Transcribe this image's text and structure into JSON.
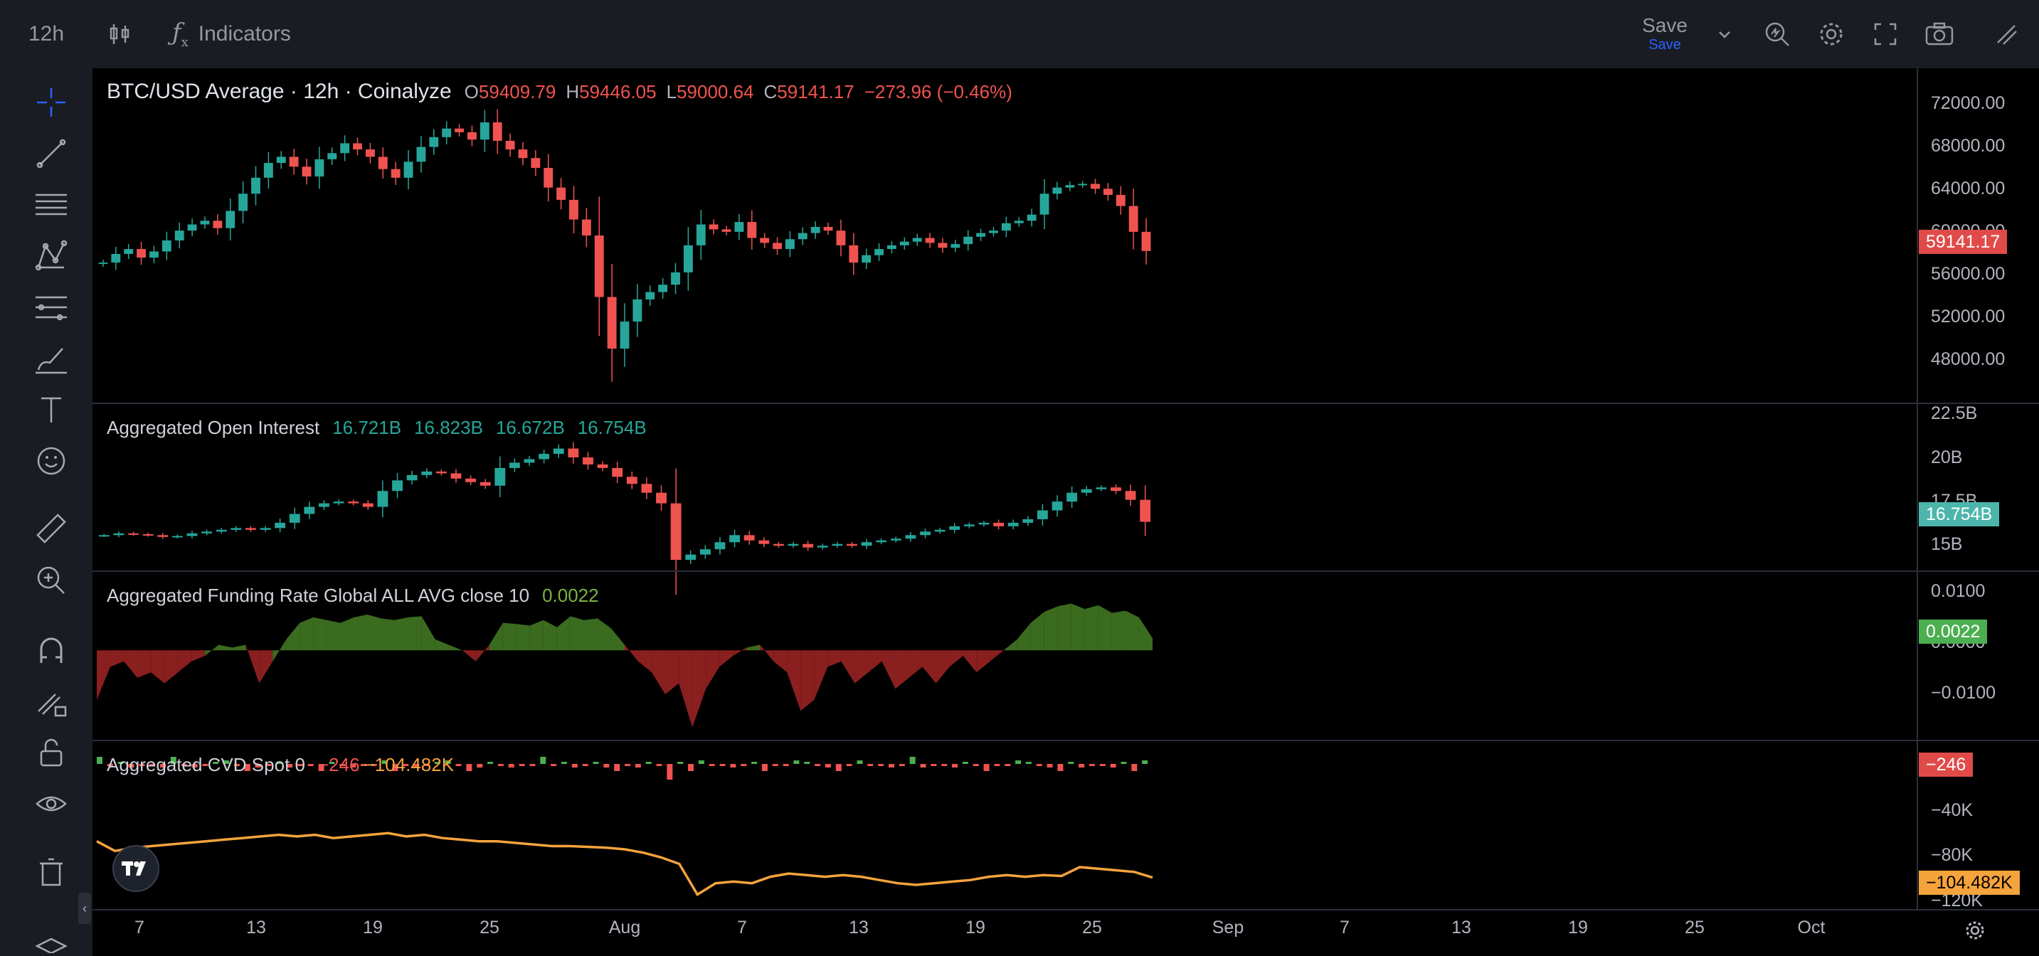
{
  "toolbar": {
    "interval": "12h",
    "indicators_label": "Indicators",
    "save_label": "Save",
    "save_sub_label": "Save"
  },
  "main_pane": {
    "title": "BTC/USD Average · 12h · Coinalyze",
    "o_key": "O",
    "o_val": "59409.79",
    "h_key": "H",
    "h_val": "59446.05",
    "l_key": "L",
    "l_val": "59000.64",
    "c_key": "C",
    "c_val": "59141.17",
    "change": "−273.96 (−0.46%)",
    "y_ticks": [
      "72000.00",
      "68000.00",
      "64000.00",
      "60000.00",
      "56000.00",
      "52000.00",
      "48000.00"
    ],
    "last_badge": "59141.17"
  },
  "oi_pane": {
    "title": "Aggregated Open Interest",
    "values": [
      "16.721B",
      "16.823B",
      "16.672B",
      "16.754B"
    ],
    "y_ticks": [
      "22.5B",
      "20B",
      "17.5B",
      "15B"
    ],
    "last_badge": "16.754B"
  },
  "funding_pane": {
    "title": "Aggregated Funding Rate Global ALL AVG close 10",
    "value": "0.0022",
    "y_ticks": [
      "0.0100",
      "0.0000",
      "−0.0100"
    ],
    "last_badge": "0.0022"
  },
  "cvd_pane": {
    "title": "Aggregated CVD Spot 0",
    "value1": "−246",
    "value2": "−104.482K",
    "y_ticks": [
      "−40K",
      "−80K",
      "−120K"
    ],
    "badge1": "−246",
    "badge2": "−104.482K"
  },
  "x_axis": {
    "labels": [
      "7",
      "13",
      "19",
      "25",
      "Aug",
      "7",
      "13",
      "19",
      "25",
      "Sep",
      "7",
      "13",
      "19",
      "25",
      "Oct"
    ]
  },
  "colors": {
    "up": "#26a69a",
    "down": "#ef5350",
    "funding_pos": "#3b6b1f",
    "funding_neg": "#8a1f1f",
    "cvd_line": "#f5a33c",
    "accent": "#2962ff"
  },
  "chart_data": [
    {
      "type": "candlestick",
      "title": "BTC/USD Average · 12h · Coinalyze",
      "ylim": [
        46000,
        74000
      ],
      "close_path": [
        58200,
        58900,
        59300,
        58600,
        59100,
        60000,
        60800,
        61300,
        61600,
        61000,
        62400,
        63800,
        65100,
        66300,
        66800,
        66000,
        65200,
        66600,
        67100,
        67900,
        67400,
        66800,
        65800,
        65100,
        66400,
        67600,
        68400,
        69100,
        68800,
        68200,
        69600,
        68100,
        67400,
        66700,
        65900,
        64300,
        63300,
        61700,
        60400,
        55400,
        51200,
        53400,
        55200,
        55800,
        56400,
        57400,
        59600,
        61300,
        60900,
        60700,
        61500,
        60200,
        59800,
        59300,
        60100,
        60600,
        61100,
        60800,
        59600,
        58200,
        58800,
        59300,
        59600,
        59900,
        60200,
        59800,
        59400,
        59700,
        60300,
        60600,
        60800,
        61400,
        61600,
        62100,
        63800,
        64300,
        64500,
        64600,
        64200,
        63700,
        62800,
        60700,
        59141
      ]
    },
    {
      "type": "candlestick",
      "title": "Aggregated Open Interest",
      "ylim": [
        14000000000,
        23500000000
      ],
      "close_path": [
        16.0,
        16.1,
        16.05,
        16.0,
        15.9,
        15.95,
        16.1,
        16.2,
        16.3,
        16.4,
        16.3,
        16.4,
        16.7,
        17.2,
        17.6,
        17.8,
        17.9,
        17.8,
        17.6,
        18.5,
        19.1,
        19.4,
        19.6,
        19.5,
        19.2,
        19.0,
        18.8,
        19.8,
        20.1,
        20.3,
        20.6,
        20.9,
        20.4,
        20.0,
        19.8,
        19.3,
        18.9,
        18.4,
        17.8,
        14.6,
        14.9,
        15.2,
        15.6,
        16.0,
        15.7,
        15.5,
        15.4,
        15.5,
        15.3,
        15.4,
        15.5,
        15.4,
        15.6,
        15.7,
        15.8,
        16.0,
        16.2,
        16.3,
        16.5,
        16.6,
        16.7,
        16.5,
        16.7,
        16.9,
        17.4,
        17.9,
        18.4,
        18.6,
        18.7,
        18.5,
        18.0,
        16.754
      ]
    },
    {
      "type": "area",
      "title": "Aggregated Funding Rate Global ALL AVG close 10",
      "ylim": [
        -0.016,
        0.014
      ],
      "values": [
        -0.009,
        -0.003,
        -0.002,
        -0.005,
        -0.004,
        -0.006,
        -0.004,
        -0.002,
        -0.001,
        0.001,
        0.0005,
        0.001,
        -0.006,
        -0.002,
        0.002,
        0.005,
        0.006,
        0.0055,
        0.005,
        0.006,
        0.0065,
        0.0058,
        0.0055,
        0.006,
        0.0062,
        0.002,
        0.001,
        0.0,
        -0.002,
        0.001,
        0.005,
        0.0048,
        0.0045,
        0.0055,
        0.0042,
        0.0062,
        0.0055,
        0.0058,
        0.004,
        0.001,
        -0.002,
        -0.004,
        -0.008,
        -0.006,
        -0.014,
        -0.007,
        -0.003,
        -0.001,
        0.0005,
        0.001,
        -0.002,
        -0.004,
        -0.011,
        -0.009,
        -0.003,
        -0.002,
        -0.006,
        -0.004,
        -0.002,
        -0.007,
        -0.005,
        -0.003,
        -0.006,
        -0.003,
        -0.001,
        -0.004,
        -0.002,
        0.0,
        0.002,
        0.005,
        0.007,
        0.008,
        0.0085,
        0.0075,
        0.0082,
        0.0068,
        0.0072,
        0.006,
        0.0022
      ]
    },
    {
      "type": "line",
      "title": "Aggregated CVD Spot 0",
      "ylim": [
        -124000,
        -20000
      ],
      "values": [
        -82000,
        -88000,
        -86000,
        -85000,
        -84000,
        -83000,
        -82000,
        -81000,
        -80000,
        -79000,
        -78000,
        -79000,
        -78000,
        -80000,
        -79000,
        -78000,
        -77000,
        -79000,
        -78000,
        -80000,
        -81000,
        -82000,
        -82000,
        -83000,
        -84000,
        -85000,
        -85000,
        -85500,
        -86000,
        -87000,
        -89000,
        -92000,
        -96000,
        -115000,
        -108000,
        -107000,
        -108000,
        -104000,
        -102000,
        -103000,
        -104000,
        -103000,
        -104000,
        -106000,
        -108000,
        -109000,
        -108000,
        -107000,
        -106000,
        -104000,
        -103000,
        -104000,
        -103000,
        -103500,
        -98000,
        -99000,
        -100000,
        -101000,
        -104482
      ]
    }
  ]
}
